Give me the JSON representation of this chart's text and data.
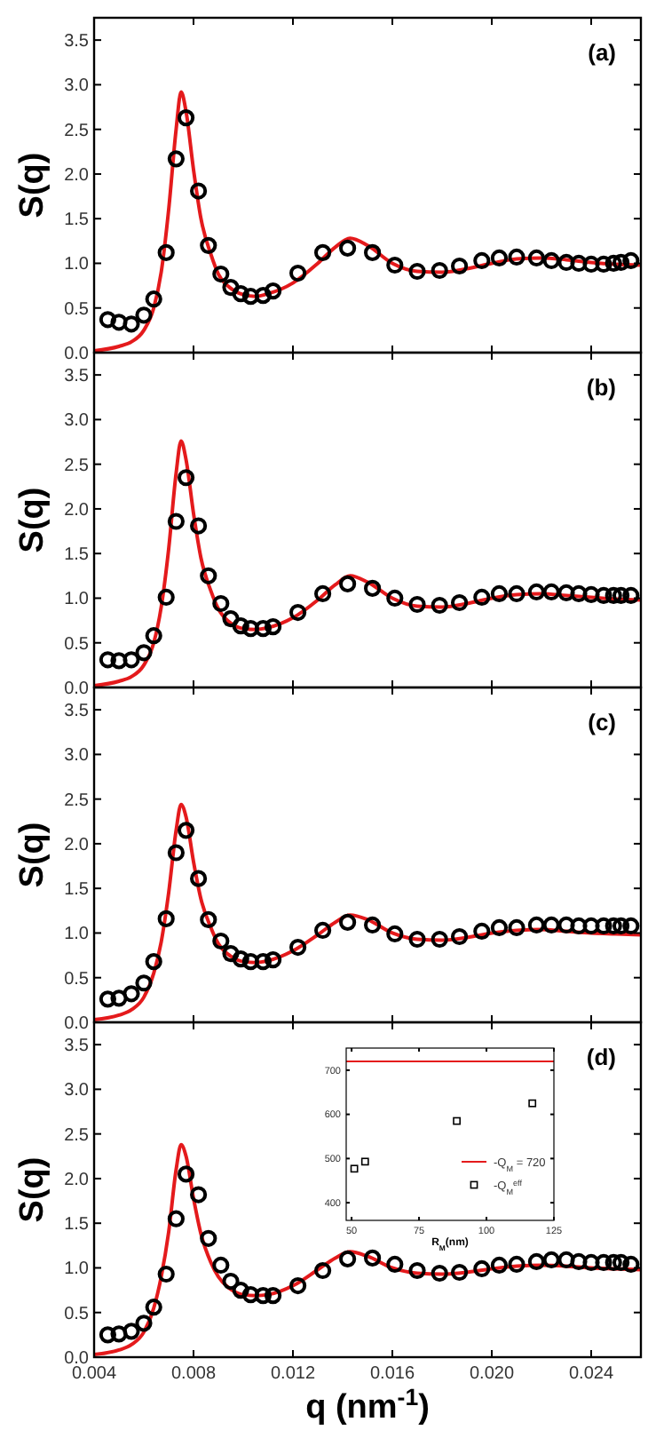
{
  "chart_data": [
    {
      "type": "scatter",
      "ylabel": "S(q)",
      "annotations": [
        "(a)"
      ],
      "xlim": [
        0.004,
        0.026
      ],
      "xticks": [
        0.004,
        0.008,
        0.012,
        0.016,
        0.02,
        0.024
      ],
      "ylim": [
        0,
        3.75
      ],
      "yticks": [
        {
          "value": 0,
          "label": "0.0"
        },
        0.5,
        {
          "value": 1,
          "label": "1.0"
        },
        1.5,
        {
          "value": 2,
          "label": "2.0"
        },
        2.5,
        {
          "value": 3,
          "label": "3.0"
        },
        3.5
      ],
      "tick_labels": "y",
      "grid": false,
      "legend": false,
      "series": [
        {
          "type": "line",
          "color": "#e41a1c",
          "x": [
            0.004,
            0.005,
            0.0055,
            0.006,
            0.0064,
            0.0067,
            0.007,
            0.0073,
            0.0075,
            0.0077,
            0.008,
            0.0083,
            0.0087,
            0.009,
            0.0095,
            0.01,
            0.0105,
            0.011,
            0.012,
            0.013,
            0.0137,
            0.0143,
            0.015,
            0.016,
            0.017,
            0.018,
            0.019,
            0.02,
            0.021,
            0.022,
            0.023,
            0.024,
            0.025,
            0.026
          ],
          "values": [
            0.02,
            0.07,
            0.12,
            0.25,
            0.5,
            0.9,
            1.6,
            2.5,
            2.92,
            2.7,
            2.05,
            1.5,
            1.1,
            0.88,
            0.72,
            0.65,
            0.63,
            0.66,
            0.78,
            1.0,
            1.18,
            1.28,
            1.2,
            1.0,
            0.91,
            0.9,
            0.94,
            1.0,
            1.05,
            1.06,
            1.04,
            1.01,
            0.99,
            0.98
          ]
        },
        {
          "marker": "circle",
          "color": "#000000",
          "x": [
            0.00455,
            0.005,
            0.0055,
            0.006,
            0.0064,
            0.0069,
            0.0073,
            0.0077,
            0.0082,
            0.0086,
            0.0091,
            0.0095,
            0.0099,
            0.0103,
            0.0108,
            0.0112,
            0.0122,
            0.0132,
            0.0142,
            0.0152,
            0.0161,
            0.017,
            0.0179,
            0.0187,
            0.0196,
            0.0203,
            0.021,
            0.0218,
            0.0224,
            0.023,
            0.0235,
            0.024,
            0.0245,
            0.0249,
            0.0252,
            0.0256
          ],
          "values": [
            0.37,
            0.34,
            0.32,
            0.42,
            0.6,
            1.12,
            2.17,
            2.63,
            1.81,
            1.2,
            0.88,
            0.73,
            0.66,
            0.63,
            0.64,
            0.69,
            0.89,
            1.12,
            1.17,
            1.12,
            0.98,
            0.91,
            0.92,
            0.97,
            1.03,
            1.06,
            1.07,
            1.06,
            1.03,
            1.01,
            1.0,
            0.99,
            0.99,
            1.0,
            1.01,
            1.03
          ]
        }
      ]
    },
    {
      "type": "scatter",
      "ylabel": "S(q)",
      "annotations": [
        "(b)"
      ],
      "xlim": [
        0.004,
        0.026
      ],
      "xticks": [
        0.004,
        0.008,
        0.012,
        0.016,
        0.02,
        0.024
      ],
      "ylim": [
        0,
        3.75
      ],
      "yticks": [
        {
          "value": 0,
          "label": "0.0"
        },
        0.5,
        {
          "value": 1,
          "label": "1.0"
        },
        1.5,
        {
          "value": 2,
          "label": "2.0"
        },
        2.5,
        {
          "value": 3,
          "label": "3.0"
        },
        3.5
      ],
      "tick_labels": "y",
      "grid": false,
      "legend": false,
      "series": [
        {
          "type": "line",
          "color": "#e41a1c",
          "x": [
            0.004,
            0.005,
            0.0055,
            0.006,
            0.0064,
            0.0067,
            0.007,
            0.0073,
            0.0075,
            0.0077,
            0.008,
            0.0083,
            0.0087,
            0.009,
            0.0095,
            0.01,
            0.0105,
            0.011,
            0.012,
            0.013,
            0.0137,
            0.0143,
            0.015,
            0.016,
            0.017,
            0.018,
            0.019,
            0.02,
            0.021,
            0.022,
            0.023,
            0.024,
            0.025,
            0.026
          ],
          "values": [
            0.02,
            0.07,
            0.12,
            0.25,
            0.5,
            0.9,
            1.55,
            2.4,
            2.76,
            2.55,
            1.95,
            1.45,
            1.08,
            0.88,
            0.72,
            0.66,
            0.65,
            0.67,
            0.78,
            0.98,
            1.15,
            1.25,
            1.18,
            1.0,
            0.91,
            0.9,
            0.94,
            1.0,
            1.04,
            1.05,
            1.03,
            1.01,
            0.99,
            0.98
          ]
        },
        {
          "marker": "circle",
          "color": "#000000",
          "x": [
            0.00455,
            0.005,
            0.0055,
            0.006,
            0.0064,
            0.0069,
            0.0073,
            0.0077,
            0.0082,
            0.0086,
            0.0091,
            0.0095,
            0.0099,
            0.0103,
            0.0108,
            0.0112,
            0.0122,
            0.0132,
            0.0142,
            0.0152,
            0.0161,
            0.017,
            0.0179,
            0.0187,
            0.0196,
            0.0203,
            0.021,
            0.0218,
            0.0224,
            0.023,
            0.0235,
            0.024,
            0.0245,
            0.0249,
            0.0252,
            0.0256
          ],
          "values": [
            0.31,
            0.3,
            0.31,
            0.39,
            0.58,
            1.01,
            1.86,
            2.35,
            1.81,
            1.25,
            0.94,
            0.77,
            0.69,
            0.66,
            0.66,
            0.68,
            0.84,
            1.05,
            1.16,
            1.11,
            1.0,
            0.93,
            0.92,
            0.95,
            1.01,
            1.05,
            1.05,
            1.07,
            1.07,
            1.06,
            1.05,
            1.04,
            1.03,
            1.03,
            1.03,
            1.03
          ]
        }
      ]
    },
    {
      "type": "scatter",
      "ylabel": "S(q)",
      "annotations": [
        "(c)"
      ],
      "xlim": [
        0.004,
        0.026
      ],
      "xticks": [
        0.004,
        0.008,
        0.012,
        0.016,
        0.02,
        0.024
      ],
      "ylim": [
        0,
        3.75
      ],
      "yticks": [
        {
          "value": 0,
          "label": "0.0"
        },
        0.5,
        {
          "value": 1,
          "label": "1.0"
        },
        1.5,
        {
          "value": 2,
          "label": "2.0"
        },
        2.5,
        {
          "value": 3,
          "label": "3.0"
        },
        3.5
      ],
      "tick_labels": "y",
      "grid": false,
      "legend": false,
      "series": [
        {
          "type": "line",
          "color": "#e41a1c",
          "x": [
            0.004,
            0.005,
            0.0055,
            0.006,
            0.0064,
            0.0067,
            0.007,
            0.0073,
            0.0075,
            0.0077,
            0.008,
            0.0083,
            0.0087,
            0.009,
            0.0095,
            0.01,
            0.0105,
            0.011,
            0.012,
            0.013,
            0.0137,
            0.0143,
            0.015,
            0.016,
            0.017,
            0.018,
            0.019,
            0.02,
            0.021,
            0.022,
            0.023,
            0.024,
            0.025,
            0.026
          ],
          "values": [
            0.03,
            0.08,
            0.14,
            0.28,
            0.55,
            0.9,
            1.45,
            2.15,
            2.44,
            2.3,
            1.8,
            1.38,
            1.06,
            0.88,
            0.74,
            0.68,
            0.67,
            0.69,
            0.8,
            0.98,
            1.12,
            1.2,
            1.15,
            1.0,
            0.93,
            0.92,
            0.95,
            1.0,
            1.03,
            1.04,
            1.02,
            1.0,
            0.99,
            0.98
          ]
        },
        {
          "marker": "circle",
          "color": "#000000",
          "x": [
            0.00455,
            0.005,
            0.0055,
            0.006,
            0.0064,
            0.0069,
            0.0073,
            0.0077,
            0.0082,
            0.0086,
            0.0091,
            0.0095,
            0.0099,
            0.0103,
            0.0108,
            0.0112,
            0.0122,
            0.0132,
            0.0142,
            0.0152,
            0.0161,
            0.017,
            0.0179,
            0.0187,
            0.0196,
            0.0203,
            0.021,
            0.0218,
            0.0224,
            0.023,
            0.0235,
            0.024,
            0.0245,
            0.0249,
            0.0252,
            0.0256
          ],
          "values": [
            0.26,
            0.27,
            0.32,
            0.44,
            0.68,
            1.16,
            1.9,
            2.15,
            1.61,
            1.15,
            0.91,
            0.77,
            0.71,
            0.68,
            0.68,
            0.7,
            0.84,
            1.03,
            1.12,
            1.09,
            0.99,
            0.93,
            0.93,
            0.96,
            1.02,
            1.06,
            1.06,
            1.09,
            1.09,
            1.09,
            1.08,
            1.08,
            1.08,
            1.08,
            1.08,
            1.08
          ]
        }
      ]
    },
    {
      "type": "scatter",
      "ylabel": "S(q)",
      "xlabel": "q (nm$^{-1}$)",
      "annotations": [
        "(d)"
      ],
      "xlim": [
        0.004,
        0.026
      ],
      "xticks": [
        {
          "value": 0.004,
          "label": "0.004"
        },
        {
          "value": 0.008,
          "label": "0.008"
        },
        {
          "value": 0.012,
          "label": "0.012"
        },
        {
          "value": 0.016,
          "label": "0.016"
        },
        {
          "value": 0.02,
          "label": "0.020"
        },
        {
          "value": 0.024,
          "label": "0.024"
        }
      ],
      "ylim": [
        0,
        3.75
      ],
      "yticks": [
        {
          "value": 0,
          "label": "0.0"
        },
        0.5,
        {
          "value": 1,
          "label": "1.0"
        },
        1.5,
        {
          "value": 2,
          "label": "2.0"
        },
        2.5,
        {
          "value": 3,
          "label": "3.0"
        },
        3.5
      ],
      "grid": false,
      "legend": false,
      "series": [
        {
          "type": "line",
          "color": "#e41a1c",
          "x": [
            0.004,
            0.005,
            0.0055,
            0.006,
            0.0064,
            0.0067,
            0.007,
            0.0073,
            0.0075,
            0.0077,
            0.008,
            0.0083,
            0.0087,
            0.009,
            0.0095,
            0.01,
            0.0105,
            0.011,
            0.012,
            0.013,
            0.0137,
            0.0143,
            0.015,
            0.016,
            0.017,
            0.018,
            0.019,
            0.02,
            0.021,
            0.022,
            0.023,
            0.024,
            0.025,
            0.026
          ],
          "values": [
            0.03,
            0.08,
            0.14,
            0.28,
            0.55,
            0.9,
            1.4,
            2.1,
            2.38,
            2.25,
            1.78,
            1.38,
            1.06,
            0.9,
            0.76,
            0.7,
            0.69,
            0.7,
            0.8,
            0.98,
            1.11,
            1.18,
            1.13,
            1.0,
            0.94,
            0.93,
            0.95,
            0.99,
            1.02,
            1.03,
            1.02,
            1.0,
            0.99,
            0.98
          ]
        },
        {
          "marker": "circle",
          "color": "#000000",
          "x": [
            0.00455,
            0.005,
            0.0055,
            0.006,
            0.0064,
            0.0069,
            0.0073,
            0.0077,
            0.0082,
            0.0086,
            0.0091,
            0.0095,
            0.0099,
            0.0103,
            0.0108,
            0.0112,
            0.0122,
            0.0132,
            0.0142,
            0.0152,
            0.0161,
            0.017,
            0.0179,
            0.0187,
            0.0196,
            0.0203,
            0.021,
            0.0218,
            0.0224,
            0.023,
            0.0235,
            0.024,
            0.0245,
            0.0249,
            0.0252,
            0.0256
          ],
          "values": [
            0.25,
            0.26,
            0.29,
            0.38,
            0.56,
            0.93,
            1.55,
            2.05,
            1.82,
            1.33,
            1.03,
            0.85,
            0.75,
            0.7,
            0.69,
            0.69,
            0.8,
            0.97,
            1.1,
            1.11,
            1.04,
            0.97,
            0.94,
            0.95,
            0.99,
            1.03,
            1.04,
            1.07,
            1.09,
            1.09,
            1.07,
            1.06,
            1.06,
            1.06,
            1.06,
            1.04
          ]
        }
      ]
    },
    {
      "type": "scatter",
      "xlabel": "R$_{M}$(nm)",
      "xlim": [
        48,
        125
      ],
      "xticks": [
        50,
        75,
        100,
        125
      ],
      "ylim": [
        360,
        750
      ],
      "yticks": [
        400,
        500,
        600,
        700
      ],
      "grid": false,
      "legend": "bottom right",
      "series": [
        {
          "type": "line",
          "name": "-Q$_{M}$ = 720",
          "color": "#e41a1c",
          "x": [
            48,
            125
          ],
          "values": [
            720,
            720
          ]
        },
        {
          "marker": "square",
          "name": "-Q$_{M}$$^{eff}$",
          "color": "#000000",
          "x": [
            51,
            55,
            89,
            117
          ],
          "values": [
            477,
            493,
            585,
            625
          ]
        }
      ]
    }
  ]
}
